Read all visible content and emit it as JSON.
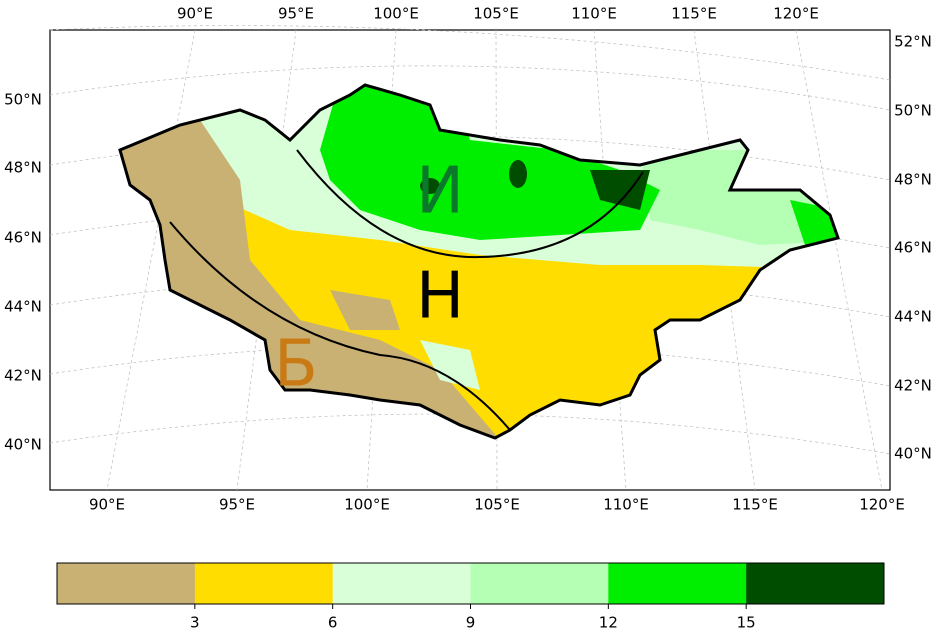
{
  "map": {
    "top_labels": [
      "90°E",
      "95°E",
      "100°E",
      "105°E",
      "110°E",
      "115°E",
      "120°E"
    ],
    "bottom_labels": [
      "90°E",
      "95°E",
      "100°E",
      "105°E",
      "110°E",
      "115°E",
      "120°E"
    ],
    "left_labels": [
      "50°N",
      "48°N",
      "46°N",
      "44°N",
      "42°N",
      "40°N"
    ],
    "right_labels": [
      "52°N",
      "50°N",
      "48°N",
      "46°N",
      "44°N",
      "42°N",
      "40°N"
    ],
    "region_labels": [
      "И",
      "Н",
      "Б"
    ]
  },
  "colorbar": {
    "colors": [
      "#c8b173",
      "#ffdd00",
      "#d8ffd8",
      "#b4ffb4",
      "#00ee00",
      "#004d00"
    ],
    "range": [
      0,
      18
    ],
    "ticks": [
      3,
      6,
      9,
      12,
      15
    ]
  }
}
